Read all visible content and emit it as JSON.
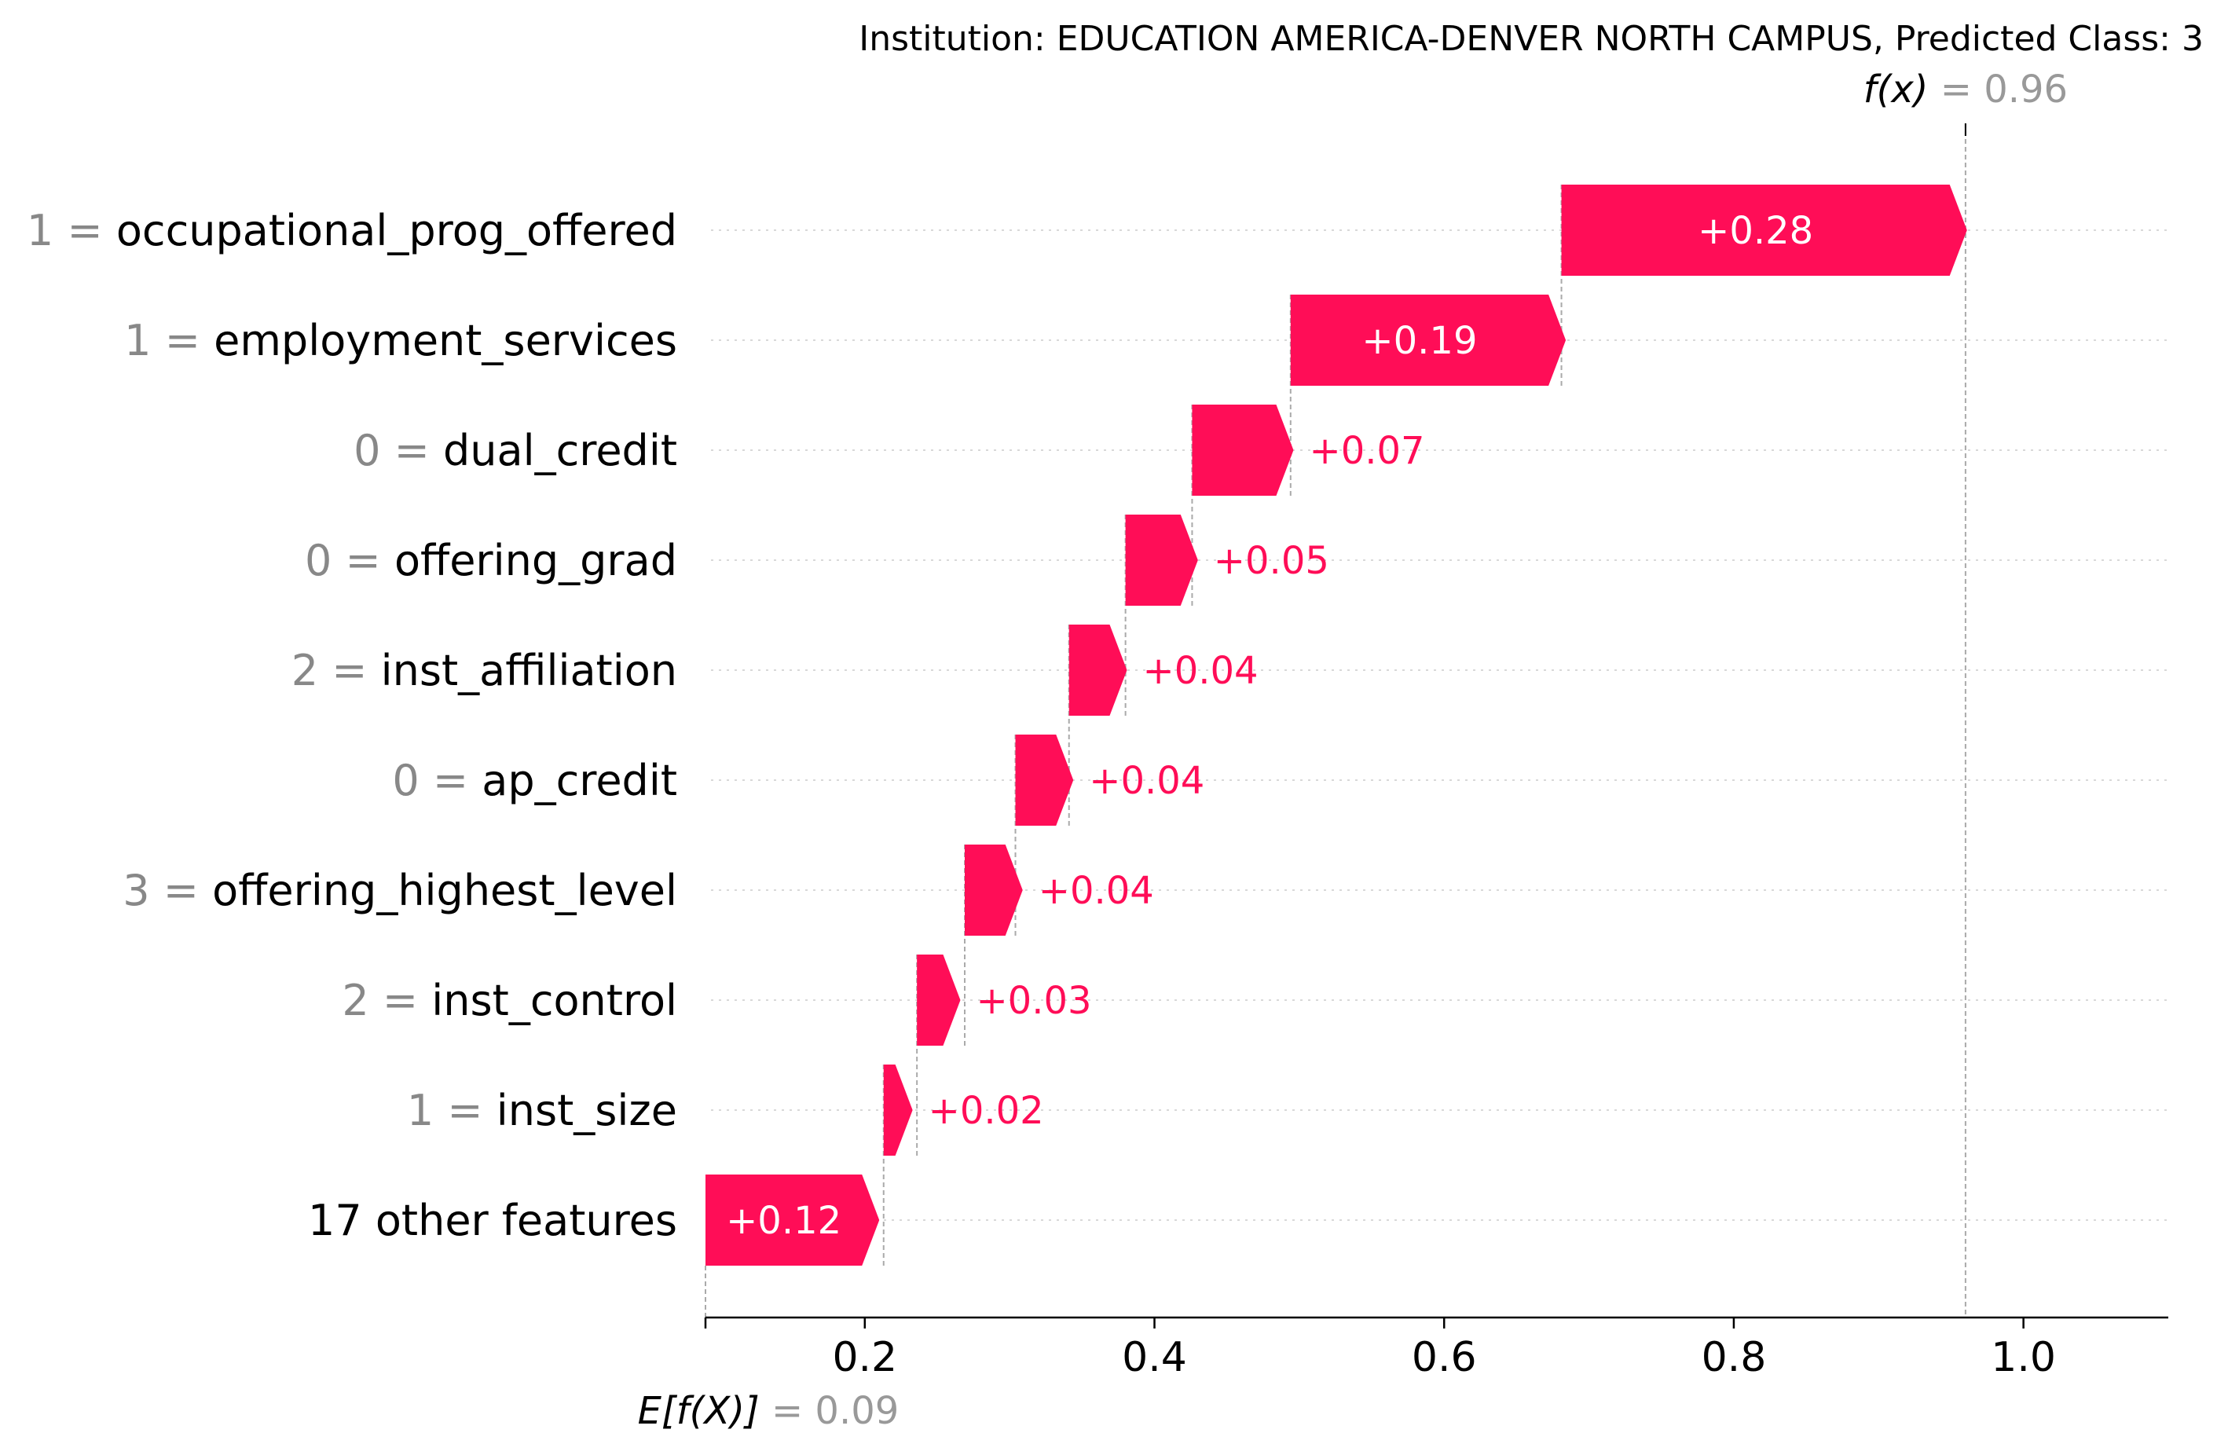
{
  "chart_data": {
    "type": "waterfall",
    "title": "Institution: EDUCATION AMERICA-DENVER NORTH CAMPUS, Predicted Class: 3",
    "base_value": 0.09,
    "base_label": "E[f(X)]",
    "base_value_text": "= 0.09",
    "output_value": 0.96,
    "output_label": "f(x)",
    "output_value_text": "= 0.96",
    "xlim": [
      0.09,
      1.1
    ],
    "x_ticks": [
      0.2,
      0.4,
      0.6,
      0.8,
      1.0
    ],
    "x_tick_labels": [
      "0.2",
      "0.4",
      "0.6",
      "0.8",
      "1.0"
    ],
    "positive_color": "#ff0d57",
    "features": [
      {
        "value": "1",
        "name": "occupational_prog_offered",
        "contribution": 0.28,
        "label": "+0.28",
        "start": 0.681
      },
      {
        "value": "1",
        "name": "employment_services",
        "contribution": 0.19,
        "label": "+0.19",
        "start": 0.494
      },
      {
        "value": "0",
        "name": "dual_credit",
        "contribution": 0.07,
        "label": "+0.07",
        "start": 0.426
      },
      {
        "value": "0",
        "name": "offering_grad",
        "contribution": 0.05,
        "label": "+0.05",
        "start": 0.38
      },
      {
        "value": "2",
        "name": "inst_affiliation",
        "contribution": 0.04,
        "label": "+0.04",
        "start": 0.341
      },
      {
        "value": "0",
        "name": "ap_credit",
        "contribution": 0.04,
        "label": "+0.04",
        "start": 0.304
      },
      {
        "value": "3",
        "name": "offering_highest_level",
        "contribution": 0.04,
        "label": "+0.04",
        "start": 0.269
      },
      {
        "value": "2",
        "name": "inst_control",
        "contribution": 0.03,
        "label": "+0.03",
        "start": 0.236
      },
      {
        "value": "1",
        "name": "inst_size",
        "contribution": 0.02,
        "label": "+0.02",
        "start": 0.213
      },
      {
        "value": "",
        "name": "17 other features",
        "contribution": 0.12,
        "label": "+0.12",
        "start": 0.09
      }
    ]
  }
}
